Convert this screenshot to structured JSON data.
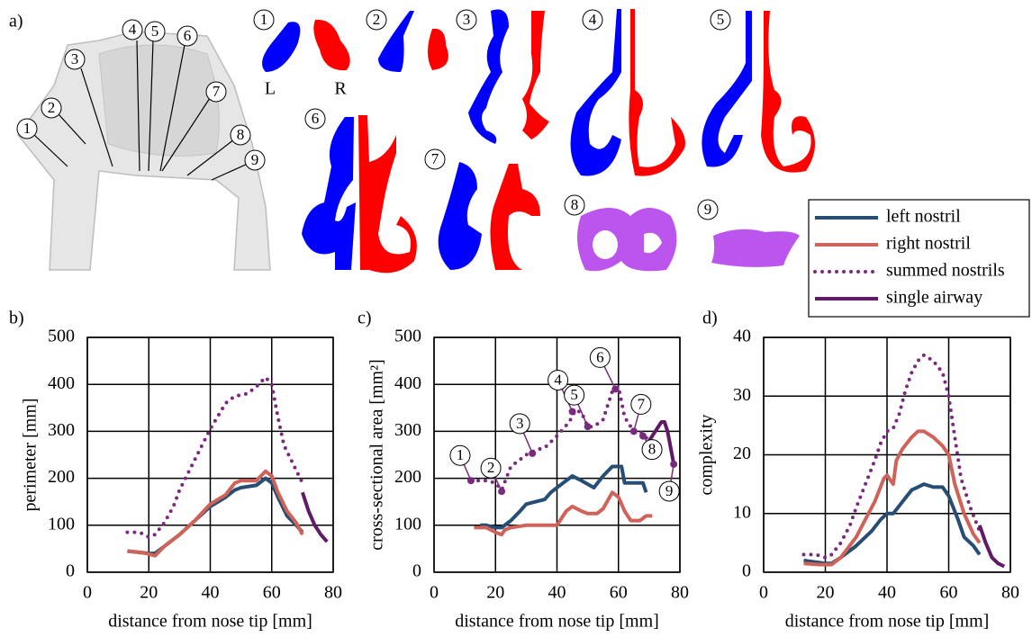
{
  "panel_labels": [
    "a)",
    "b)",
    "c)",
    "d)"
  ],
  "panel_a": {
    "section_numbers": [
      "1",
      "2",
      "3",
      "4",
      "5",
      "6",
      "7",
      "8",
      "9"
    ],
    "left_label": "L",
    "right_label": "R"
  },
  "chart_data": [
    {
      "type": "line",
      "ylabel": "perimeter [mm]",
      "xlabel": "distance from nose tip [mm]",
      "xlim": [
        0,
        80
      ],
      "xticks": [
        0,
        20,
        40,
        60,
        80
      ],
      "ylim": [
        0,
        500
      ],
      "yticks": [
        0,
        100,
        200,
        300,
        400,
        500
      ],
      "grid": true,
      "series": [
        {
          "name": "left nostril",
          "color": "#264d73",
          "style": "solid",
          "x": [
            13,
            20,
            22,
            25,
            30,
            35,
            40,
            45,
            48,
            50,
            55,
            58,
            60,
            62,
            65,
            68,
            70
          ],
          "values": [
            45,
            40,
            40,
            55,
            80,
            110,
            140,
            160,
            175,
            180,
            185,
            200,
            190,
            160,
            120,
            100,
            85
          ]
        },
        {
          "name": "right nostril",
          "color": "#cf6259",
          "style": "solid",
          "x": [
            13,
            18,
            22,
            25,
            30,
            35,
            40,
            45,
            48,
            50,
            55,
            58,
            60,
            62,
            65,
            68,
            70
          ],
          "values": [
            45,
            42,
            35,
            55,
            80,
            110,
            145,
            165,
            190,
            195,
            195,
            215,
            205,
            170,
            130,
            105,
            80
          ]
        },
        {
          "name": "summed nostrils",
          "color": "#7a2a7e",
          "style": "dotted",
          "x": [
            13,
            17,
            20,
            22,
            25,
            28,
            30,
            35,
            40,
            45,
            48,
            52,
            55,
            58,
            60,
            62,
            64,
            67,
            70
          ],
          "values": [
            85,
            85,
            75,
            80,
            105,
            140,
            175,
            240,
            305,
            360,
            375,
            380,
            395,
            415,
            400,
            330,
            270,
            230,
            190
          ]
        },
        {
          "name": "single airway",
          "color": "#601a66",
          "style": "solid",
          "x": [
            70,
            72,
            74,
            76,
            78
          ],
          "values": [
            170,
            130,
            100,
            80,
            65
          ]
        }
      ]
    },
    {
      "type": "line",
      "ylabel": "cross-sectional area [mm²]",
      "xlabel": "distance from nose tip [mm]",
      "xlim": [
        0,
        80
      ],
      "xticks": [
        0,
        20,
        40,
        60,
        80
      ],
      "ylim": [
        0,
        500
      ],
      "yticks": [
        0,
        100,
        200,
        300,
        400,
        500
      ],
      "grid": true,
      "series": [
        {
          "name": "left nostril",
          "color": "#264d73",
          "style": "solid",
          "x": [
            15,
            17,
            20,
            22,
            25,
            28,
            30,
            33,
            36,
            38,
            40,
            42,
            45,
            48,
            52,
            55,
            58,
            61,
            62,
            65,
            68,
            69
          ],
          "values": [
            100,
            100,
            95,
            95,
            110,
            130,
            145,
            150,
            155,
            170,
            180,
            190,
            205,
            195,
            180,
            205,
            225,
            225,
            190,
            190,
            190,
            170
          ]
        },
        {
          "name": "right nostril",
          "color": "#cf6259",
          "style": "solid",
          "x": [
            13,
            17,
            20,
            22,
            23,
            25,
            30,
            35,
            40,
            43,
            45,
            48,
            50,
            53,
            55,
            58,
            60,
            62,
            64,
            67,
            69,
            71
          ],
          "values": [
            95,
            95,
            85,
            80,
            90,
            95,
            100,
            100,
            100,
            130,
            140,
            130,
            125,
            125,
            135,
            170,
            160,
            130,
            110,
            110,
            120,
            120
          ]
        },
        {
          "name": "summed nostrils",
          "color": "#7a2a7e",
          "style": "dotted",
          "x": [
            12,
            17,
            20,
            22,
            25,
            30,
            33,
            36,
            40,
            44,
            46,
            48,
            50,
            52,
            55,
            58,
            60,
            62,
            65,
            67,
            70
          ],
          "values": [
            195,
            195,
            190,
            175,
            225,
            250,
            260,
            265,
            290,
            320,
            345,
            340,
            310,
            310,
            325,
            385,
            395,
            330,
            300,
            300,
            280
          ]
        },
        {
          "name": "single airway",
          "color": "#601a66",
          "style": "solid",
          "x": [
            70,
            72,
            74,
            75,
            76,
            78
          ],
          "values": [
            280,
            300,
            320,
            320,
            300,
            230
          ]
        }
      ],
      "markers": {
        "x": [
          12,
          22,
          32,
          45,
          50,
          59,
          65,
          68,
          78
        ],
        "values": [
          195,
          172,
          253,
          342,
          310,
          390,
          300,
          290,
          230
        ]
      }
    },
    {
      "type": "line",
      "ylabel": "complexity",
      "xlabel": "distance from nose tip [mm]",
      "xlim": [
        0,
        80
      ],
      "xticks": [
        0,
        20,
        40,
        60,
        80
      ],
      "ylim": [
        0,
        40
      ],
      "yticks": [
        0,
        10,
        20,
        30,
        40
      ],
      "grid": true,
      "series": [
        {
          "name": "left nostril",
          "color": "#264d73",
          "style": "solid",
          "x": [
            13,
            20,
            22,
            25,
            30,
            35,
            38,
            40,
            42,
            45,
            48,
            50,
            52,
            55,
            58,
            60,
            63,
            65,
            68,
            70
          ],
          "values": [
            2,
            1.5,
            1.5,
            2.5,
            4.5,
            7,
            9,
            10,
            10,
            12,
            14,
            14.5,
            15,
            14.5,
            14.5,
            13,
            9,
            6,
            4.5,
            3
          ]
        },
        {
          "name": "right nostril",
          "color": "#cf6259",
          "style": "solid",
          "x": [
            13,
            18,
            22,
            25,
            30,
            33,
            36,
            39,
            40,
            42,
            43,
            45,
            48,
            50,
            52,
            55,
            58,
            60,
            62,
            65,
            68,
            70
          ],
          "values": [
            1.5,
            1.3,
            1.3,
            2.5,
            6,
            9,
            12,
            16,
            16.5,
            15,
            19,
            21,
            23,
            24,
            24,
            23,
            21.5,
            20,
            15,
            10,
            6.5,
            5
          ]
        },
        {
          "name": "summed nostrils",
          "color": "#7a2a7e",
          "style": "dotted",
          "x": [
            13,
            17,
            20,
            22,
            25,
            28,
            30,
            33,
            36,
            38,
            40,
            42,
            44,
            46,
            48,
            50,
            52,
            55,
            58,
            60,
            62,
            64,
            67,
            70
          ],
          "values": [
            3,
            3,
            2.5,
            3,
            5,
            8,
            11,
            15,
            19,
            22,
            24,
            24.5,
            27,
            31,
            34,
            36,
            37,
            36,
            34,
            30,
            23,
            16,
            11,
            7
          ]
        },
        {
          "name": "single airway",
          "color": "#601a66",
          "style": "solid",
          "x": [
            70,
            72,
            74,
            76,
            78
          ],
          "values": [
            8,
            5,
            2.5,
            1.5,
            1
          ]
        }
      ]
    }
  ]
}
